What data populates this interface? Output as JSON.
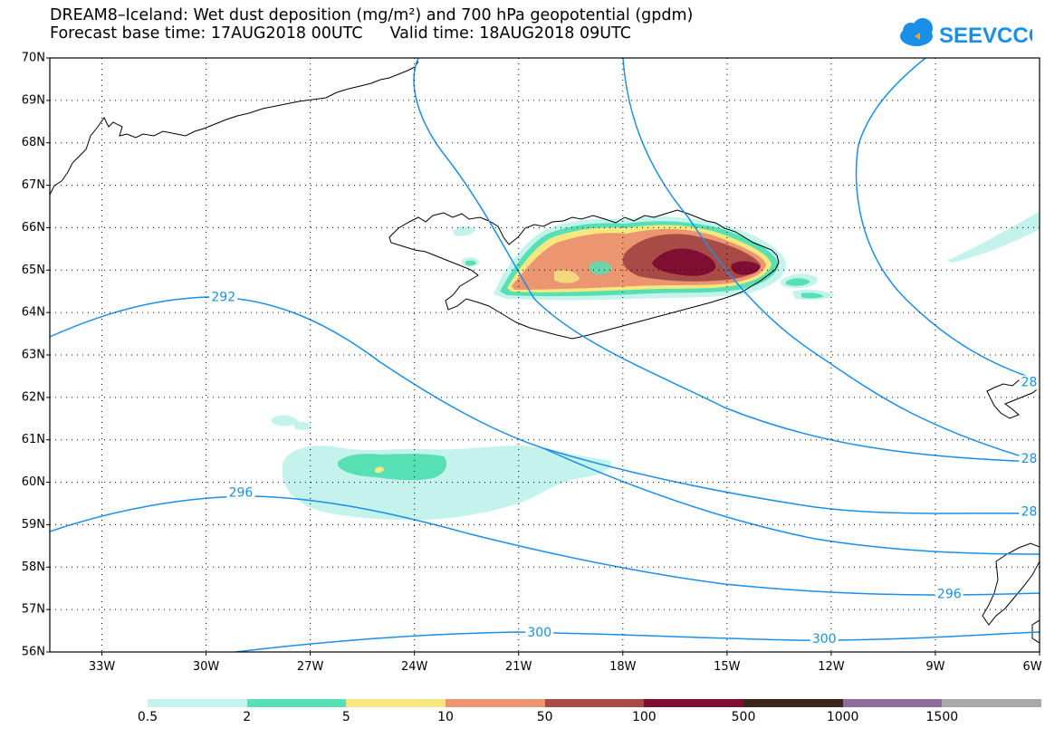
{
  "header": {
    "title_line1": "DREAM8–Iceland: Wet dust deposition (mg/m²) and 700 hPa geopotential (gpdm)",
    "base_time": "Forecast base time: 17AUG2018 00UTC",
    "valid_time": "Valid time: 18AUG2018 09UTC",
    "logo_text": "SEEVCCC"
  },
  "map": {
    "extent": {
      "lon_min": -34.5,
      "lon_max": -6,
      "lat_min": 56,
      "lat_max": 70
    },
    "lat_ticks": [
      "70N",
      "69N",
      "68N",
      "67N",
      "66N",
      "65N",
      "64N",
      "63N",
      "62N",
      "61N",
      "60N",
      "59N",
      "58N",
      "57N",
      "56N"
    ],
    "lon_ticks": [
      "33W",
      "30W",
      "27W",
      "24W",
      "21W",
      "18W",
      "15W",
      "12W",
      "9W",
      "6W"
    ],
    "grid": "dotted",
    "contour_color": "#1a8fe8",
    "contour_labels": [
      {
        "text": "292",
        "lon": -29.5,
        "lat": 64.35
      },
      {
        "text": "296",
        "lon": -29.0,
        "lat": 59.75
      },
      {
        "text": "300",
        "lon": -20.4,
        "lat": 56.45
      },
      {
        "text": "300",
        "lon": -12.2,
        "lat": 56.3
      },
      {
        "text": "296",
        "lon": -8.6,
        "lat": 57.35
      },
      {
        "text": "28",
        "lon": -6.3,
        "lat": 62.35
      },
      {
        "text": "28",
        "lon": -6.3,
        "lat": 60.55
      },
      {
        "text": "28",
        "lon": -6.3,
        "lat": 59.3
      }
    ]
  },
  "legend": {
    "colors": [
      "#c4f2ec",
      "#57e0b4",
      "#f7e77f",
      "#eb9670",
      "#a84a45",
      "#7e0f33",
      "#3b261e",
      "#8e6a9e",
      "#a9a9a9"
    ],
    "labels": [
      "0.5",
      "2",
      "5",
      "10",
      "50",
      "100",
      "500",
      "1000",
      "1500"
    ]
  }
}
